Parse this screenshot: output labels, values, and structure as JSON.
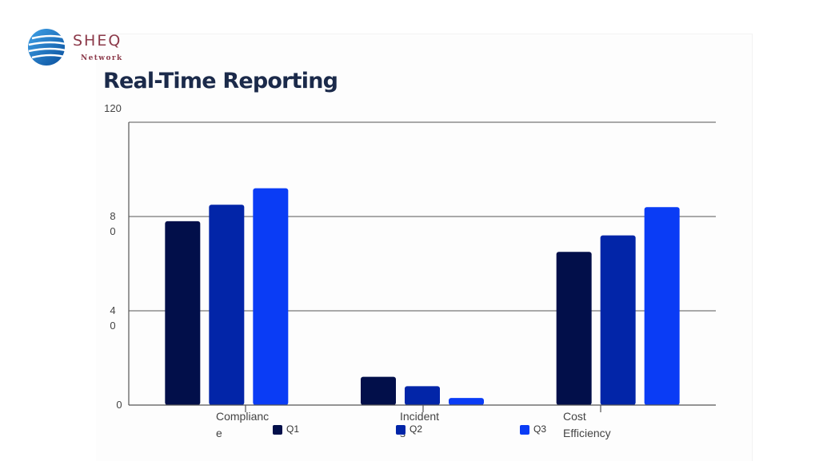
{
  "header": {
    "logo_text": "SHEQ",
    "logo_subtext": "Network",
    "title": "Real-Time Reporting"
  },
  "chart_data": {
    "type": "bar",
    "title": "Real-Time Reporting",
    "categories": [
      "Complianc\ne",
      "Incident\ns",
      "Cost\nEfficiency"
    ],
    "series": [
      {
        "name": "Q1",
        "color": "#020f4a",
        "values": [
          78,
          12,
          65
        ]
      },
      {
        "name": "Q2",
        "color": "#0225a8",
        "values": [
          85,
          8,
          72
        ]
      },
      {
        "name": "Q3",
        "color": "#0a3cf5",
        "values": [
          92,
          3,
          84
        ]
      }
    ],
    "y_ticks": [
      "0",
      "4\n0",
      "8\n0",
      "120"
    ],
    "ylim": [
      0,
      120
    ],
    "grid": true,
    "legend_position": "bottom"
  }
}
